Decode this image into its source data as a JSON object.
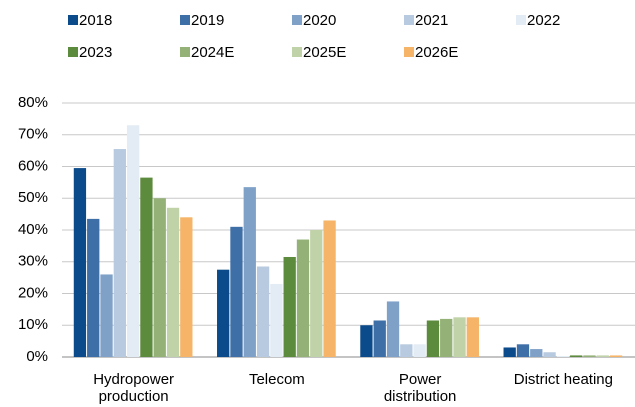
{
  "chart_data": {
    "type": "bar",
    "categories": [
      "Hydropower production",
      "Telecom",
      "Power distribution",
      "District heating"
    ],
    "series": [
      {
        "name": "2018",
        "color": "#0b4a8b",
        "values": [
          59.5,
          27.5,
          10,
          3
        ]
      },
      {
        "name": "2019",
        "color": "#3f6fa7",
        "values": [
          43.5,
          41,
          11.5,
          4
        ]
      },
      {
        "name": "2020",
        "color": "#7fa1c8",
        "values": [
          26,
          53.5,
          17.5,
          2.5
        ]
      },
      {
        "name": "2021",
        "color": "#b7cadf",
        "values": [
          65.5,
          28.5,
          4,
          1.5
        ]
      },
      {
        "name": "2022",
        "color": "#e3ebf4",
        "values": [
          73,
          23,
          4,
          0.3
        ]
      },
      {
        "name": "2023",
        "color": "#5d8b3d",
        "values": [
          56.5,
          31.5,
          11.5,
          0.5
        ]
      },
      {
        "name": "2024E",
        "color": "#94b177",
        "values": [
          50,
          37,
          12,
          0.5
        ]
      },
      {
        "name": "2025E",
        "color": "#c0d2a7",
        "values": [
          47,
          40,
          12.5,
          0.5
        ]
      },
      {
        "name": "2026E",
        "color": "#f5b467",
        "values": [
          44,
          43,
          12.5,
          0.5
        ]
      }
    ],
    "ylim": [
      0,
      80
    ],
    "yticks": [
      {
        "value": 0,
        "label": "0%"
      },
      {
        "value": 10,
        "label": "10%"
      },
      {
        "value": 20,
        "label": "20%"
      },
      {
        "value": 30,
        "label": "30%"
      },
      {
        "value": 40,
        "label": "40%"
      },
      {
        "value": 50,
        "label": "50%"
      },
      {
        "value": 60,
        "label": "60%"
      },
      {
        "value": 70,
        "label": "70%"
      },
      {
        "value": 80,
        "label": "80%"
      }
    ],
    "grid": true
  }
}
